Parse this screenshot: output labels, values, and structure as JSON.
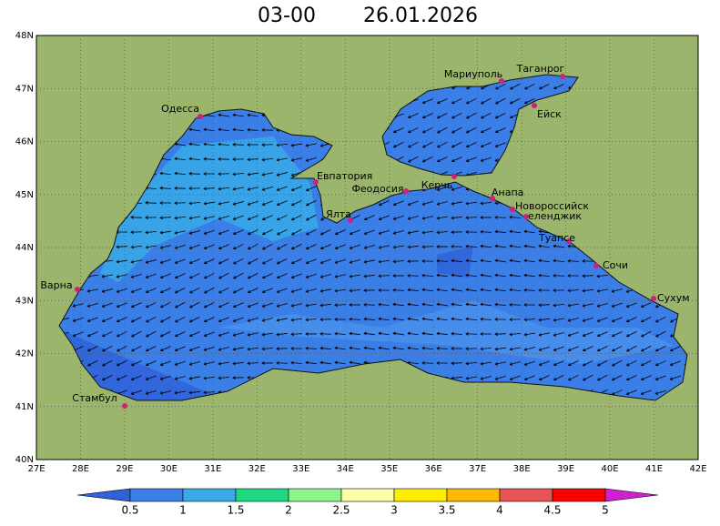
{
  "title": {
    "time": "03-00",
    "date": "26.01.2026"
  },
  "lat_labels": [
    "48N",
    "47N",
    "46N",
    "45N",
    "44N",
    "43N",
    "42N",
    "41N",
    "40N"
  ],
  "lon_labels": [
    "27E",
    "28E",
    "29E",
    "30E",
    "31E",
    "32E",
    "33E",
    "34E",
    "35E",
    "36E",
    "37E",
    "38E",
    "39E",
    "40E",
    "41E",
    "42E"
  ],
  "cities": [
    "Одесса",
    "Мариуполь",
    "Таганрог",
    "Ейск",
    "Евпатория",
    "Феодосия",
    "Керчь",
    "Ялта",
    "Анапа",
    "Новороссийск",
    "еленджик",
    "Туапсе",
    "Сочи",
    "Сухум",
    "Варна",
    "Стамбул"
  ],
  "colorbar": {
    "labels": [
      0.5,
      1,
      1.5,
      2,
      2.5,
      3,
      3.5,
      4,
      4.5,
      5
    ],
    "colors": [
      "#2f62d8",
      "#3b7fe6",
      "#3aa9e8",
      "#1fd884",
      "#8cf58c",
      "#ffffa8",
      "#ffee00",
      "#ffb800",
      "#e85454",
      "#ff0000",
      "#d020d0"
    ]
  }
}
